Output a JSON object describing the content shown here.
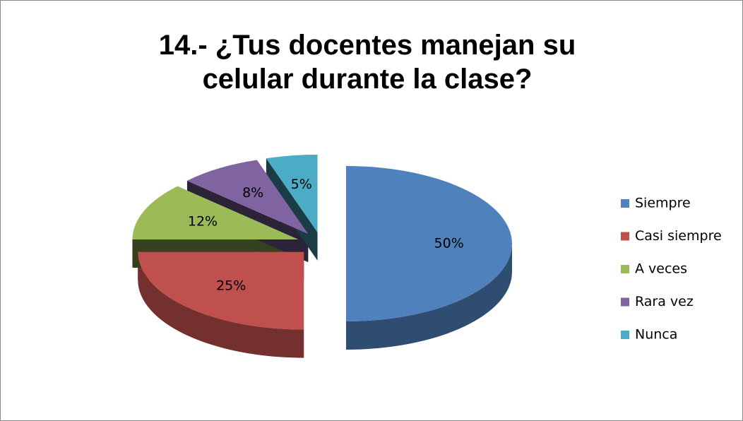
{
  "chart_data": {
    "type": "pie",
    "title": "14.- ¿Tus docentes manejan su celular durante la clase?",
    "categories": [
      "Siempre",
      "Casi siempre",
      "A veces",
      "Rara vez",
      "Nunca"
    ],
    "values": [
      50,
      25,
      12,
      8,
      5
    ],
    "value_labels": [
      "50%",
      "25%",
      "12%",
      "8%",
      "5%"
    ],
    "colors": [
      "#4f81bd",
      "#c0504d",
      "#9bbb59",
      "#8064a2",
      "#4bacc6"
    ],
    "legend": "right"
  }
}
